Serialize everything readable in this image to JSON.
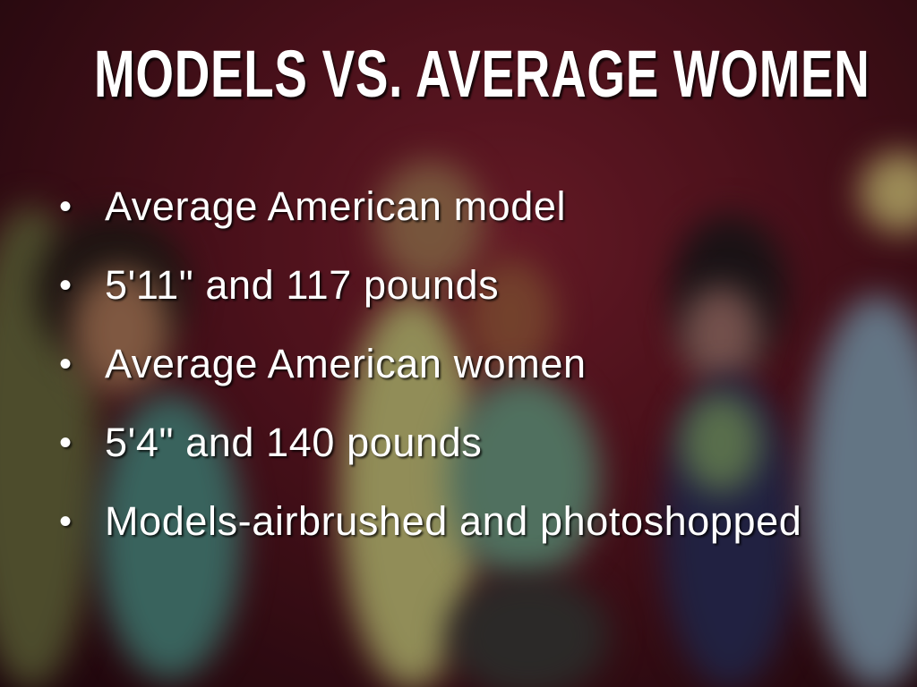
{
  "slide": {
    "title": "MODELS VS. AVERAGE WOMEN",
    "bullets": [
      "Average American model",
      "5'11\" and 117 pounds",
      "Average American women",
      "5'4\" and 140 pounds",
      "Models-airbrushed and photoshopped"
    ],
    "bullet_glyph": "•"
  },
  "colors": {
    "text": "#ffffff",
    "background": "#6a1826"
  }
}
